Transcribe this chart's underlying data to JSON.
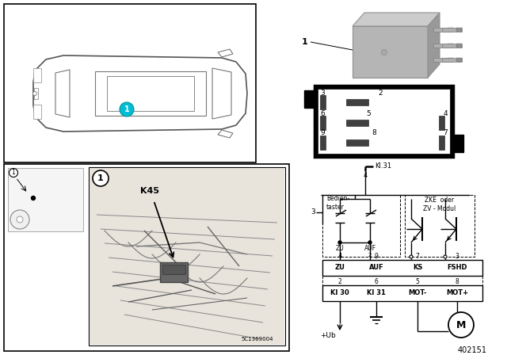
{
  "part_number": "402151",
  "background_color": "#ffffff",
  "car_dot_color": "#00bcd4",
  "photo_code": "5C1369004",
  "circuit_labels_top": [
    "ZU",
    "AUF",
    "KS",
    "FSHD"
  ],
  "circuit_pins_top": [
    "4",
    "9",
    "7",
    "3"
  ],
  "circuit_labels_bottom": [
    "Kl 30",
    "Kl 31",
    "MOT-",
    "MOT+"
  ],
  "circuit_pins_bottom": [
    "2",
    "6",
    "5",
    "8"
  ],
  "bedientaster_label": "Bedien-\ntaster",
  "zke_label": "ZKE  oder\nZV - Modul",
  "kl31_label": "Kl.31",
  "motor_label": "M",
  "ub_label": "+Ub",
  "k45_label": "K45",
  "item_label": "1",
  "gray_relay_color": "#b0b0b0",
  "gray_relay_dark": "#909090",
  "gray_relay_light": "#d0d0d0",
  "pin_slot_color": "#505050",
  "relay_pin_numbers": [
    "3",
    "2",
    "6",
    "5",
    "4",
    "9",
    "8",
    "7"
  ]
}
